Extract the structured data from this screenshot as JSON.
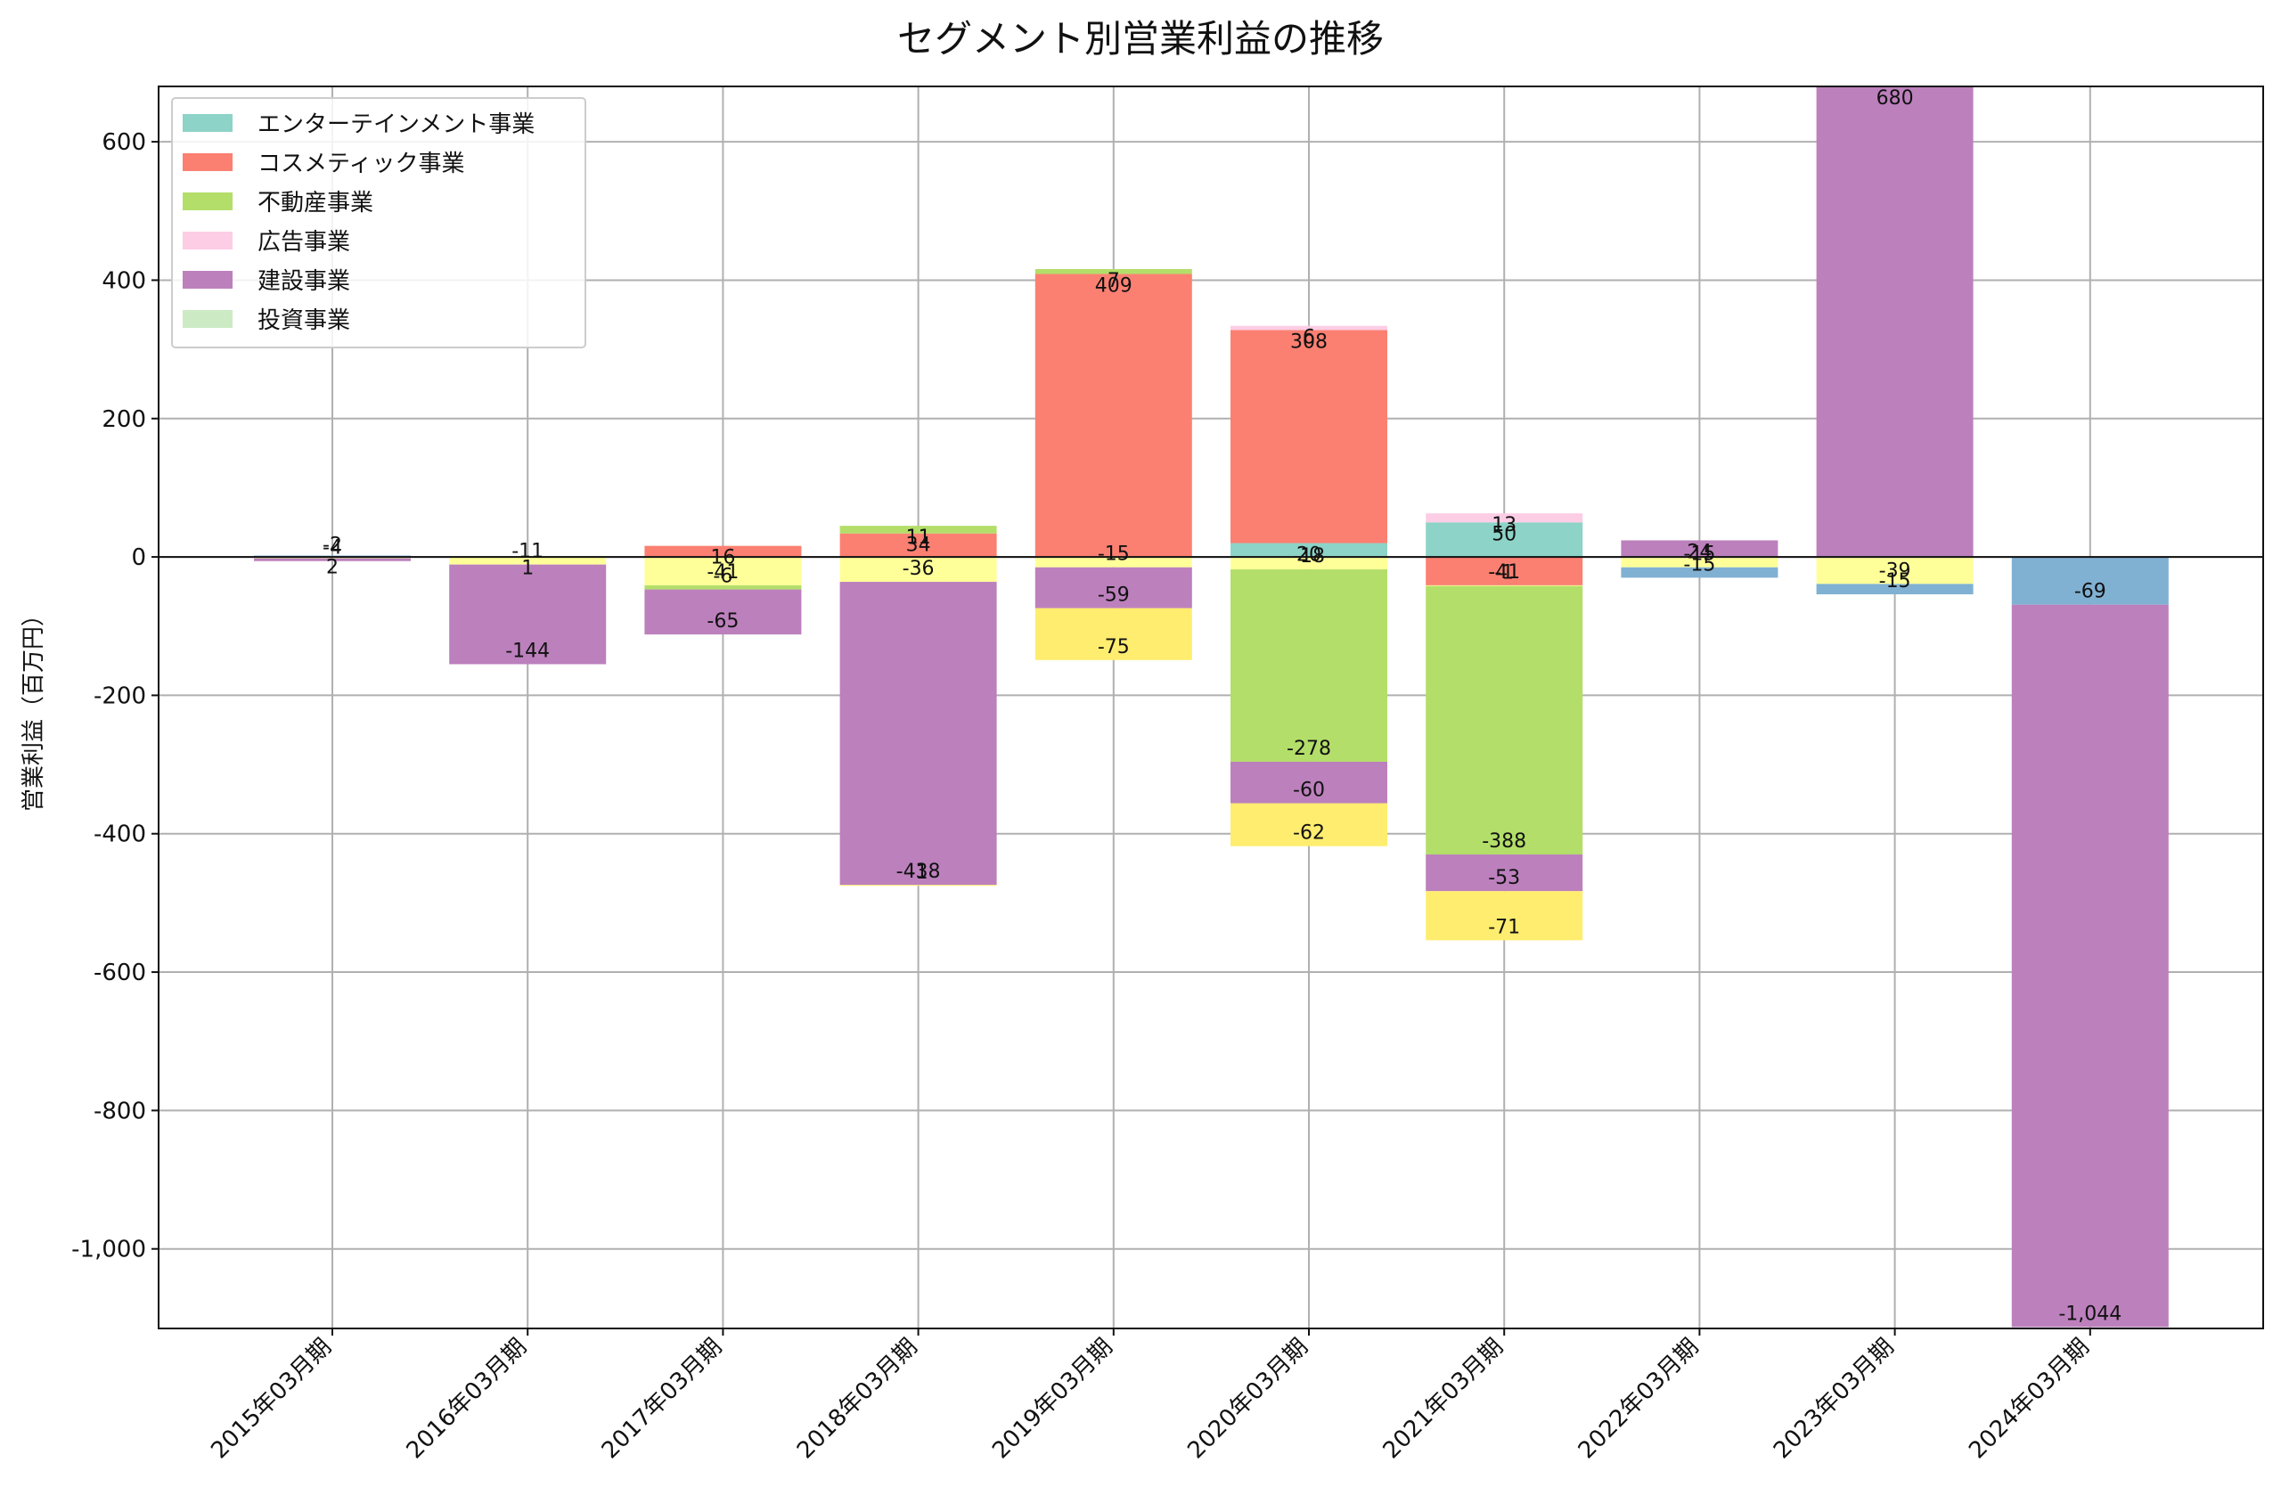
{
  "chart_data": {
    "type": "bar",
    "stacked": true,
    "title": "セグメント別営業利益の推移",
    "xlabel": "",
    "ylabel": "営業利益（百万円）",
    "ylim": [
      -1115,
      680
    ],
    "yticks": [
      600,
      400,
      200,
      0,
      -200,
      -400,
      -600,
      -800,
      -1000
    ],
    "ytick_labels": [
      "600",
      "400",
      "200",
      "0",
      "-200",
      "-400",
      "-600",
      "-800",
      "-1,000"
    ],
    "grid": true,
    "legend_position": "upper-left",
    "categories": [
      "2015年03月期",
      "2016年03月期",
      "2017年03月期",
      "2018年03月期",
      "2019年03月期",
      "2020年03月期",
      "2021年03月期",
      "2022年03月期",
      "2023年03月期",
      "2024年03月期"
    ],
    "series": [
      {
        "name": "エンターテインメント事業",
        "color": "#8dd3c7",
        "in_legend": true,
        "values": [
          null,
          null,
          null,
          null,
          null,
          20,
          50,
          null,
          null,
          null
        ]
      },
      {
        "name": "コスメティック事業",
        "color": "#fb8072",
        "in_legend": true,
        "values": [
          null,
          null,
          16,
          34,
          409,
          308,
          -41,
          null,
          null,
          null
        ]
      },
      {
        "name": "不動産事業",
        "color": "#b3de69",
        "in_legend": true,
        "values": [
          null,
          1,
          -6,
          11,
          7,
          -278,
          -388,
          null,
          null,
          null
        ]
      },
      {
        "name": "広告事業",
        "color": "#fccde5",
        "in_legend": true,
        "values": [
          null,
          null,
          null,
          null,
          null,
          6,
          13,
          null,
          null,
          null
        ]
      },
      {
        "name": "建設事業",
        "color": "#bc80bd",
        "in_legend": true,
        "values": [
          -4,
          -144,
          -65,
          -438,
          -59,
          -60,
          -53,
          24,
          680,
          -1044
        ]
      },
      {
        "name": "投資事業",
        "color": "#ccebc5",
        "in_legend": true,
        "values": [
          null,
          null,
          null,
          null,
          null,
          null,
          null,
          null,
          null,
          null
        ]
      },
      {
        "color": "#ffff99",
        "in_legend": false,
        "values": [
          -2,
          -11,
          -41,
          -36,
          -15,
          -18,
          -1,
          -15,
          -39,
          null
        ]
      },
      {
        "color": "#ffed6f",
        "in_legend": false,
        "values": [
          null,
          null,
          null,
          -1,
          -75,
          -62,
          -71,
          null,
          null,
          null
        ]
      },
      {
        "color": "#80b1d3",
        "in_legend": false,
        "values": [
          2,
          null,
          null,
          null,
          null,
          null,
          null,
          -15,
          -15,
          -69
        ]
      }
    ],
    "stack_order": [
      [
        0,
        2,
        6,
        4,
        8
      ],
      [
        0,
        2,
        6,
        4,
        8
      ],
      [
        0,
        1,
        6,
        2,
        4
      ],
      [
        0,
        1,
        2,
        6,
        4,
        7
      ],
      [
        0,
        1,
        2,
        6,
        4,
        7
      ],
      [
        0,
        1,
        3,
        6,
        2,
        4,
        7
      ],
      [
        0,
        1,
        3,
        6,
        2,
        4,
        7
      ],
      [
        0,
        4,
        6,
        8
      ],
      [
        0,
        4,
        6,
        8
      ],
      [
        0,
        8,
        4
      ]
    ]
  }
}
